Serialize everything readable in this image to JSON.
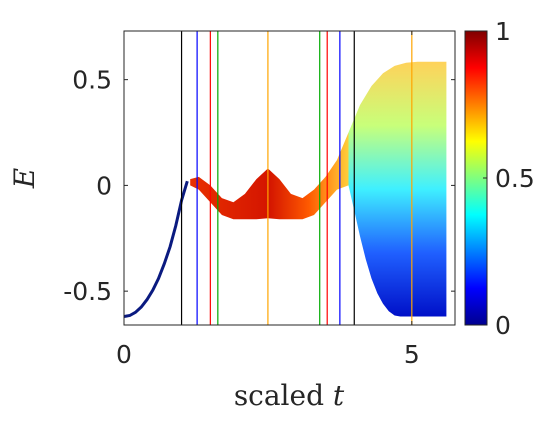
{
  "chart_data": {
    "type": "scatter",
    "title": "",
    "xlabel": {
      "prefix": "scaled ",
      "variable": "t"
    },
    "ylabel": "E",
    "xlim": [
      0,
      5.75
    ],
    "ylim": [
      -0.66,
      0.73
    ],
    "x_ticks": [
      {
        "value": 0,
        "label": "0"
      },
      {
        "value": 5,
        "label": "5"
      }
    ],
    "y_ticks": [
      {
        "value": 0.5,
        "label": "0.5"
      },
      {
        "value": 0,
        "label": "0"
      },
      {
        "value": -0.5,
        "label": "-0.5"
      }
    ],
    "grid": false,
    "colorbar": {
      "colormap": "jet",
      "range": [
        0,
        1
      ],
      "ticks": [
        {
          "value": 1,
          "label": "1"
        },
        {
          "value": 0.5,
          "label": "0.5"
        },
        {
          "value": 0,
          "label": "0"
        }
      ]
    },
    "vertical_lines": [
      {
        "x": 1.0,
        "color": "#000000"
      },
      {
        "x": 1.27,
        "color": "#0000ff"
      },
      {
        "x": 1.5,
        "color": "#ff0000"
      },
      {
        "x": 1.63,
        "color": "#00aa00"
      },
      {
        "x": 2.5,
        "color": "#ffa500"
      },
      {
        "x": 3.4,
        "color": "#00aa00"
      },
      {
        "x": 3.53,
        "color": "#ff0000"
      },
      {
        "x": 3.75,
        "color": "#0000ff"
      },
      {
        "x": 4.0,
        "color": "#000000"
      },
      {
        "x": 5.0,
        "color": "#ffa500"
      }
    ],
    "ground_curve": {
      "description_free": true,
      "color_value": 0.02,
      "points": [
        [
          0.0,
          -0.62
        ],
        [
          0.1,
          -0.615
        ],
        [
          0.2,
          -0.6
        ],
        [
          0.3,
          -0.575
        ],
        [
          0.4,
          -0.54
        ],
        [
          0.5,
          -0.495
        ],
        [
          0.6,
          -0.44
        ],
        [
          0.7,
          -0.37
        ],
        [
          0.8,
          -0.29
        ],
        [
          0.9,
          -0.19
        ],
        [
          1.0,
          -0.07
        ],
        [
          1.1,
          0.02
        ]
      ]
    },
    "upper_band_top": [
      [
        1.15,
        0.03
      ],
      [
        1.3,
        0.04
      ],
      [
        1.5,
        0.0
      ],
      [
        1.7,
        -0.06
      ],
      [
        1.9,
        -0.08
      ],
      [
        2.1,
        -0.04
      ],
      [
        2.3,
        0.03
      ],
      [
        2.5,
        0.08
      ],
      [
        2.7,
        0.03
      ],
      [
        2.9,
        -0.04
      ],
      [
        3.1,
        -0.06
      ],
      [
        3.3,
        -0.02
      ],
      [
        3.5,
        0.04
      ],
      [
        3.7,
        0.12
      ],
      [
        3.9,
        0.25
      ],
      [
        4.1,
        0.38
      ],
      [
        4.3,
        0.47
      ],
      [
        4.5,
        0.53
      ],
      [
        4.7,
        0.565
      ],
      [
        4.9,
        0.58
      ],
      [
        5.1,
        0.585
      ],
      [
        5.3,
        0.585
      ],
      [
        5.6,
        0.585
      ]
    ],
    "upper_band_bottom": [
      [
        1.15,
        0.0
      ],
      [
        1.3,
        -0.02
      ],
      [
        1.5,
        -0.08
      ],
      [
        1.7,
        -0.14
      ],
      [
        1.9,
        -0.16
      ],
      [
        2.1,
        -0.16
      ],
      [
        2.3,
        -0.16
      ],
      [
        2.5,
        -0.155
      ],
      [
        2.7,
        -0.16
      ],
      [
        2.9,
        -0.16
      ],
      [
        3.1,
        -0.16
      ],
      [
        3.3,
        -0.14
      ],
      [
        3.5,
        -0.08
      ],
      [
        3.7,
        -0.02
      ],
      [
        3.9,
        0.0
      ]
    ],
    "lower_fan_bottom": [
      [
        3.9,
        0.0
      ],
      [
        4.0,
        -0.12
      ],
      [
        4.1,
        -0.24
      ],
      [
        4.2,
        -0.35
      ],
      [
        4.3,
        -0.44
      ],
      [
        4.4,
        -0.51
      ],
      [
        4.5,
        -0.56
      ],
      [
        4.6,
        -0.595
      ],
      [
        4.7,
        -0.615
      ],
      [
        4.8,
        -0.62
      ],
      [
        5.6,
        -0.62
      ]
    ]
  }
}
